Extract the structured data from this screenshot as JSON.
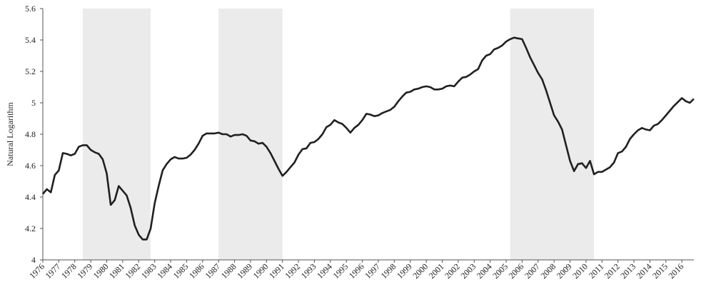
{
  "chart_data": {
    "type": "line",
    "y_label": "Natural Logarithm",
    "color": "#231f20",
    "shade_color": "#ebebeb",
    "x": [
      1976,
      1976.25,
      1976.5,
      1976.75,
      1977,
      1977.25,
      1977.5,
      1977.75,
      1978,
      1978.25,
      1978.5,
      1978.75,
      1979,
      1979.25,
      1979.5,
      1979.75,
      1980,
      1980.25,
      1980.5,
      1980.75,
      1981,
      1981.25,
      1981.5,
      1981.75,
      1982,
      1982.25,
      1982.5,
      1982.75,
      1983,
      1983.25,
      1983.5,
      1983.75,
      1984,
      1984.25,
      1984.5,
      1984.75,
      1985,
      1985.25,
      1985.5,
      1985.75,
      1986,
      1986.25,
      1986.5,
      1986.75,
      1987,
      1987.25,
      1987.5,
      1987.75,
      1988,
      1988.25,
      1988.5,
      1988.75,
      1989,
      1989.25,
      1989.5,
      1989.75,
      1990,
      1990.25,
      1990.5,
      1990.75,
      1991,
      1991.25,
      1991.5,
      1991.75,
      1992,
      1992.25,
      1992.5,
      1992.75,
      1993,
      1993.25,
      1993.5,
      1993.75,
      1994,
      1994.25,
      1994.5,
      1994.75,
      1995,
      1995.25,
      1995.5,
      1995.75,
      1996,
      1996.25,
      1996.5,
      1996.75,
      1997,
      1997.25,
      1997.5,
      1997.75,
      1998,
      1998.25,
      1998.5,
      1998.75,
      1999,
      1999.25,
      1999.5,
      1999.75,
      2000,
      2000.25,
      2000.5,
      2000.75,
      2001,
      2001.25,
      2001.5,
      2001.75,
      2002,
      2002.25,
      2002.5,
      2002.75,
      2003,
      2003.25,
      2003.5,
      2003.75,
      2004,
      2004.25,
      2004.5,
      2004.75,
      2005,
      2005.25,
      2005.5,
      2005.75,
      2006,
      2006.25,
      2006.5,
      2006.75,
      2007,
      2007.25,
      2007.5,
      2007.75,
      2008,
      2008.25,
      2008.5,
      2008.75,
      2009,
      2009.25,
      2009.5,
      2009.75,
      2010,
      2010.25,
      2010.5,
      2010.75,
      2011,
      2011.25,
      2011.5,
      2011.75,
      2012,
      2012.25,
      2012.5,
      2012.75,
      2013,
      2013.25,
      2013.5,
      2013.75,
      2014,
      2014.25,
      2014.5,
      2014.75,
      2015,
      2015.25,
      2015.5,
      2015.75,
      2016,
      2016.25,
      2016.5,
      2016.75
    ],
    "values": [
      4.42,
      4.45,
      4.43,
      4.54,
      4.57,
      4.68,
      4.675,
      4.665,
      4.675,
      4.72,
      4.73,
      4.73,
      4.7,
      4.685,
      4.675,
      4.64,
      4.55,
      4.35,
      4.38,
      4.47,
      4.44,
      4.41,
      4.33,
      4.22,
      4.16,
      4.13,
      4.13,
      4.2,
      4.36,
      4.47,
      4.57,
      4.61,
      4.64,
      4.655,
      4.645,
      4.645,
      4.65,
      4.67,
      4.7,
      4.74,
      4.79,
      4.805,
      4.805,
      4.805,
      4.81,
      4.8,
      4.8,
      4.785,
      4.795,
      4.795,
      4.8,
      4.79,
      4.76,
      4.755,
      4.74,
      4.745,
      4.72,
      4.68,
      4.63,
      4.58,
      4.535,
      4.56,
      4.59,
      4.62,
      4.67,
      4.705,
      4.71,
      4.745,
      4.75,
      4.77,
      4.8,
      4.845,
      4.86,
      4.89,
      4.875,
      4.865,
      4.84,
      4.81,
      4.84,
      4.86,
      4.89,
      4.93,
      4.925,
      4.915,
      4.92,
      4.935,
      4.945,
      4.955,
      4.975,
      5.01,
      5.04,
      5.065,
      5.07,
      5.085,
      5.09,
      5.1,
      5.105,
      5.1,
      5.085,
      5.085,
      5.09,
      5.105,
      5.11,
      5.105,
      5.135,
      5.16,
      5.165,
      5.18,
      5.2,
      5.215,
      5.27,
      5.3,
      5.31,
      5.34,
      5.35,
      5.365,
      5.39,
      5.405,
      5.415,
      5.41,
      5.405,
      5.35,
      5.29,
      5.24,
      5.19,
      5.15,
      5.08,
      5.0,
      4.92,
      4.88,
      4.83,
      4.73,
      4.63,
      4.565,
      4.61,
      4.615,
      4.585,
      4.63,
      4.545,
      4.56,
      4.56,
      4.575,
      4.59,
      4.62,
      4.68,
      4.69,
      4.72,
      4.77,
      4.8,
      4.825,
      4.84,
      4.83,
      4.825,
      4.855,
      4.865,
      4.89,
      4.92,
      4.95,
      4.98,
      5.005,
      5.03,
      5.01,
      5.0,
      5.025
    ],
    "shaded": [
      [
        1978.5,
        1982.75
      ],
      [
        1987,
        1991
      ],
      [
        2005.25,
        2010.5
      ]
    ],
    "xlim": [
      1976,
      2016.75
    ],
    "xticks": [
      1976,
      1977,
      1978,
      1979,
      1980,
      1981,
      1982,
      1983,
      1984,
      1985,
      1986,
      1987,
      1988,
      1989,
      1990,
      1991,
      1992,
      1993,
      1994,
      1995,
      1996,
      1997,
      1998,
      1999,
      2000,
      2001,
      2002,
      2003,
      2004,
      2005,
      2006,
      2007,
      2008,
      2009,
      2010,
      2011,
      2012,
      2013,
      2014,
      2015,
      2016
    ],
    "ylim": [
      4,
      5.6
    ],
    "yticks": [
      4,
      4.2,
      4.4,
      4.6,
      4.8,
      5,
      5.2,
      5.4,
      5.6
    ],
    "grid": false
  }
}
